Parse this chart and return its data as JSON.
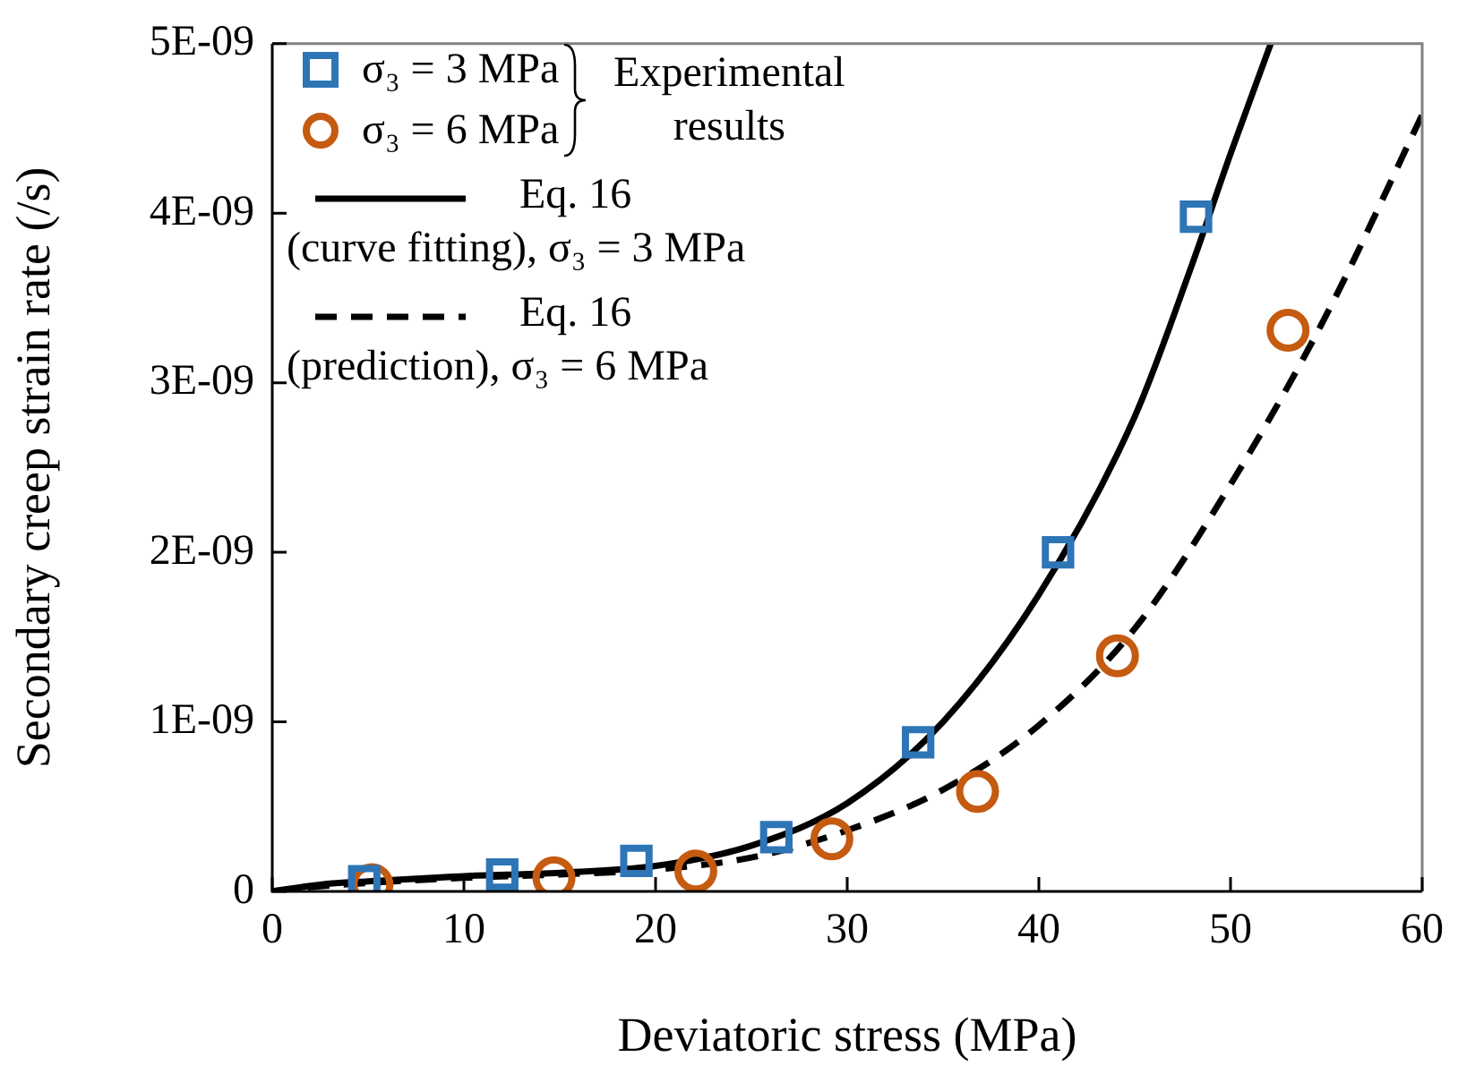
{
  "chart_data": {
    "type": "scatter",
    "xlabel": "Deviatoric stress (MPa)",
    "ylabel": "Secondary creep strain rate (/s)",
    "xlim": [
      0,
      60
    ],
    "xticks": [
      0,
      10,
      20,
      30,
      40,
      50,
      60
    ],
    "ylim": [
      0,
      5e-09
    ],
    "yticks": [
      0,
      {
        "value": 1e-09,
        "label": "1E-09"
      },
      {
        "value": 2e-09,
        "label": "2E-09"
      },
      {
        "value": 3e-09,
        "label": "3E-09"
      },
      {
        "value": 4e-09,
        "label": "4E-09"
      },
      {
        "value": 5e-09,
        "label": "5E-09"
      }
    ],
    "grid": false,
    "legend": "top left",
    "legend_title": "Experimental results",
    "series": [
      {
        "name": "σ₃ = 3 MPa",
        "type": "scatter",
        "marker": "square",
        "color": "#2e75b6",
        "x": [
          4.8,
          12.0,
          19.0,
          26.3,
          33.7,
          41.0,
          48.2
        ],
        "values": [
          6e-11,
          1e-10,
          1.8e-10,
          3.2e-10,
          8.8e-10,
          2e-09,
          3.98e-09
        ]
      },
      {
        "name": "σ₃ = 6 MPa",
        "type": "scatter",
        "marker": "circle",
        "color": "#c55a11",
        "x": [
          5.2,
          14.7,
          22.1,
          29.2,
          36.8,
          44.1,
          53.0
        ],
        "values": [
          4e-11,
          8e-11,
          1.2e-10,
          3.1e-10,
          5.9e-10,
          1.39e-09,
          3.31e-09
        ]
      },
      {
        "name": "Eq. 16\n(curve fitting), σ₃ = 3 MPa",
        "type": "line",
        "marker": "none",
        "line_style": "solid",
        "color": "#000000",
        "x": [
          0,
          2.5,
          5,
          10,
          15,
          20,
          25,
          30,
          35,
          40,
          45,
          48,
          50,
          52.1
        ],
        "values": [
          0,
          4e-11,
          6e-11,
          9e-11,
          1.1e-10,
          1.5e-10,
          2.7e-10,
          5.2e-10,
          1e-09,
          1.75e-09,
          2.8e-09,
          3.7e-09,
          4.35e-09,
          5e-09
        ]
      },
      {
        "name": "Eq. 16\n(prediction), σ₃ = 6 MPa",
        "type": "line",
        "marker": "none",
        "line_style": "dashed",
        "color": "#000000",
        "x": [
          0,
          2.5,
          5,
          10,
          15,
          20,
          25,
          30,
          35,
          40,
          45,
          50,
          55,
          60
        ],
        "values": [
          0,
          3e-11,
          5e-11,
          8e-11,
          1e-10,
          1.3e-10,
          2e-10,
          3.6e-10,
          6e-10,
          9.8e-10,
          1.55e-09,
          2.4e-09,
          3.4e-09,
          4.58e-09
        ]
      }
    ]
  }
}
